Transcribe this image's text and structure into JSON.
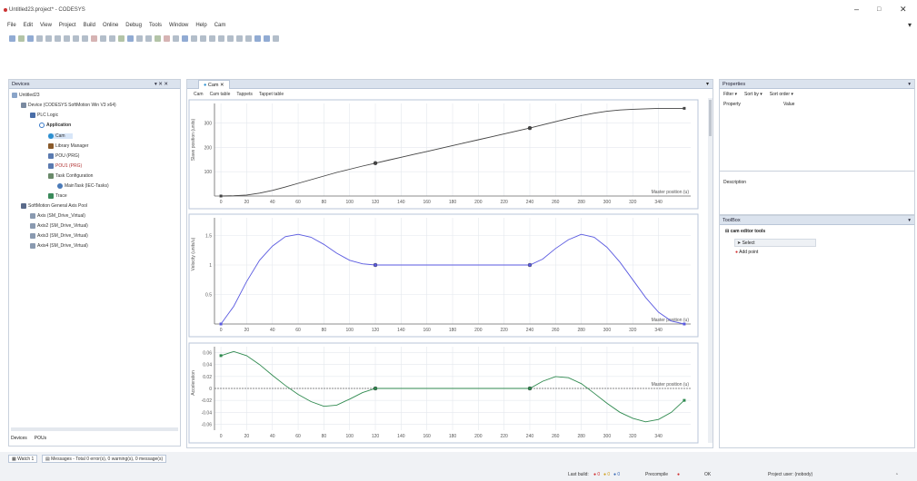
{
  "window": {
    "title": "Untitled23.project* - CODESYS",
    "controls": [
      "–",
      "□",
      "✕"
    ]
  },
  "menu": [
    "File",
    "Edit",
    "View",
    "Project",
    "Build",
    "Online",
    "Debug",
    "Tools",
    "Window",
    "Help",
    "Cam"
  ],
  "devices_panel": {
    "title": "Devices",
    "controls": "▾ ✕ ✕",
    "tree": [
      {
        "label": "Untitled23",
        "level": 0,
        "icon": "project-icon"
      },
      {
        "label": "Device (CODESYS SoftMotion Win V3 x64)",
        "level": 1,
        "icon": "device-icon"
      },
      {
        "label": "PLC Logic",
        "level": 2,
        "icon": "plc-icon"
      },
      {
        "label": "Application",
        "level": 3,
        "icon": "application-icon"
      },
      {
        "label": "Cam",
        "level": 4,
        "icon": "cam-icon"
      },
      {
        "label": "Library Manager",
        "level": 4,
        "icon": "library-icon"
      },
      {
        "label": "POU (PRG)",
        "level": 4,
        "icon": "pou-icon"
      },
      {
        "label": "POU1 (PRG)",
        "level": 4,
        "icon": "pou-icon"
      },
      {
        "label": "Task Configuration",
        "level": 4,
        "icon": "task-icon"
      },
      {
        "label": "MainTask (IEC-Tasks)",
        "level": 5,
        "icon": "maintask-icon"
      },
      {
        "label": "Trace",
        "level": 4,
        "icon": "trace-icon"
      },
      {
        "label": "SoftMotion General Axis Pool",
        "level": 1,
        "icon": "axis-pool-icon"
      },
      {
        "label": "Axis (SM_Drive_Virtual)",
        "level": 2,
        "icon": "axis-icon"
      },
      {
        "label": "Axis2 (SM_Drive_Virtual)",
        "level": 2,
        "icon": "axis-icon"
      },
      {
        "label": "Axis3 (SM_Drive_Virtual)",
        "level": 2,
        "icon": "axis-icon"
      },
      {
        "label": "Axis4 (SM_Drive_Virtual)",
        "level": 2,
        "icon": "axis-icon"
      }
    ],
    "bottom_tabs": [
      "Devices",
      "POUs"
    ]
  },
  "editor": {
    "tab_label": "Cam",
    "subtabs": [
      "Cam",
      "Cam table",
      "Tappets",
      "Tappet table"
    ],
    "chart_data": [
      {
        "type": "line",
        "ylabel": "Slave position (units)",
        "xlabel": "Master position (u)",
        "x_ticks": [
          0,
          20,
          40,
          60,
          80,
          100,
          120,
          140,
          160,
          180,
          200,
          220,
          240,
          260,
          280,
          300,
          320,
          340
        ],
        "y_ticks": [
          100,
          200,
          300
        ],
        "xlim": [
          -5,
          365
        ],
        "ylim": [
          0,
          380
        ],
        "x": [
          0,
          10,
          20,
          30,
          40,
          50,
          60,
          70,
          80,
          90,
          100,
          110,
          120,
          130,
          140,
          150,
          160,
          170,
          180,
          190,
          200,
          210,
          220,
          230,
          240,
          250,
          260,
          270,
          280,
          290,
          300,
          310,
          320,
          330,
          340,
          350,
          360
        ],
        "values": [
          0,
          1,
          4,
          12,
          23,
          37,
          52,
          67,
          82,
          97,
          110,
          123,
          135,
          147,
          159,
          171,
          183,
          195,
          207,
          219,
          231,
          243,
          255,
          267,
          279,
          292,
          305,
          318,
          330,
          340,
          348,
          353,
          356,
          358,
          360,
          360,
          360
        ],
        "points_x": [
          120,
          240
        ],
        "points_y": [
          135,
          279
        ]
      },
      {
        "type": "line",
        "ylabel": "Velocity (units/u)",
        "xlabel": "Master position (u)",
        "x_ticks": [
          0,
          20,
          40,
          60,
          80,
          100,
          120,
          140,
          160,
          180,
          200,
          220,
          240,
          260,
          280,
          300,
          320,
          340
        ],
        "y_ticks": [
          0.5,
          1,
          1.5
        ],
        "xlim": [
          -5,
          365
        ],
        "ylim": [
          0,
          1.8
        ],
        "x": [
          0,
          10,
          20,
          30,
          40,
          50,
          60,
          70,
          80,
          90,
          100,
          110,
          120,
          130,
          140,
          150,
          160,
          170,
          180,
          190,
          200,
          210,
          220,
          230,
          240,
          250,
          260,
          270,
          280,
          290,
          300,
          310,
          320,
          330,
          340,
          350,
          360
        ],
        "values": [
          0,
          0.3,
          0.72,
          1.08,
          1.32,
          1.48,
          1.52,
          1.47,
          1.35,
          1.2,
          1.08,
          1.02,
          1.0,
          1.0,
          1.0,
          1.0,
          1.0,
          1.0,
          1.0,
          1.0,
          1.0,
          1.0,
          1.0,
          1.0,
          1.0,
          1.1,
          1.28,
          1.43,
          1.52,
          1.47,
          1.3,
          1.05,
          0.75,
          0.45,
          0.2,
          0.05,
          0
        ],
        "points_x": [
          120,
          240
        ],
        "points_y": [
          1.0,
          1.0
        ]
      },
      {
        "type": "line",
        "ylabel": "Acceleration",
        "xlabel": "Master position (u)",
        "x_ticks": [
          0,
          20,
          40,
          60,
          80,
          100,
          120,
          140,
          160,
          180,
          200,
          220,
          240,
          260,
          280,
          300,
          320,
          340
        ],
        "y_ticks": [
          -0.06,
          -0.04,
          -0.02,
          0,
          0.02,
          0.04,
          0.06
        ],
        "xlim": [
          -5,
          365
        ],
        "ylim": [
          -0.07,
          0.07
        ],
        "x": [
          0,
          10,
          20,
          30,
          40,
          50,
          60,
          70,
          80,
          90,
          100,
          110,
          120,
          130,
          140,
          150,
          160,
          170,
          180,
          190,
          200,
          210,
          220,
          230,
          240,
          250,
          260,
          270,
          280,
          290,
          300,
          310,
          320,
          330,
          340,
          350,
          360
        ],
        "values": [
          0.055,
          0.062,
          0.055,
          0.04,
          0.022,
          0.005,
          -0.01,
          -0.022,
          -0.03,
          -0.028,
          -0.018,
          -0.007,
          0,
          0,
          0,
          0,
          0,
          0,
          0,
          0,
          0,
          0,
          0,
          0,
          0,
          0.012,
          0.02,
          0.018,
          0.008,
          -0.008,
          -0.025,
          -0.04,
          -0.05,
          -0.056,
          -0.052,
          -0.04,
          -0.02
        ],
        "points_x": [
          120,
          240
        ],
        "points_y": [
          0,
          0
        ]
      }
    ]
  },
  "properties_panel": {
    "title": "Properties",
    "toolbar": [
      "Filter ▾",
      "Sort by ▾",
      "Sort order ▾"
    ],
    "col_property": "Property",
    "col_value": "Value",
    "description_label": "Description"
  },
  "toolbox_panel": {
    "title": "ToolBox",
    "group": "cam editor tools",
    "items": [
      "Select",
      "Add point"
    ]
  },
  "status_bar": {
    "tabs": [
      "Watch 1",
      "Messages - Total 0 error(s), 0 warning(s), 0 message(s)"
    ],
    "last_build": "Last build:",
    "last_build_counts": [
      "0",
      "0",
      "0"
    ],
    "precompile": "Precompile",
    "ok": "OK",
    "project_user": "Project user: (nobody)"
  },
  "colors": {
    "panel_header": "#dbe3ee",
    "curve_position": "#444444",
    "curve_velocity": "#5a5ae0",
    "curve_accel": "#2f8a4f",
    "accent": "#1e6fc8"
  }
}
